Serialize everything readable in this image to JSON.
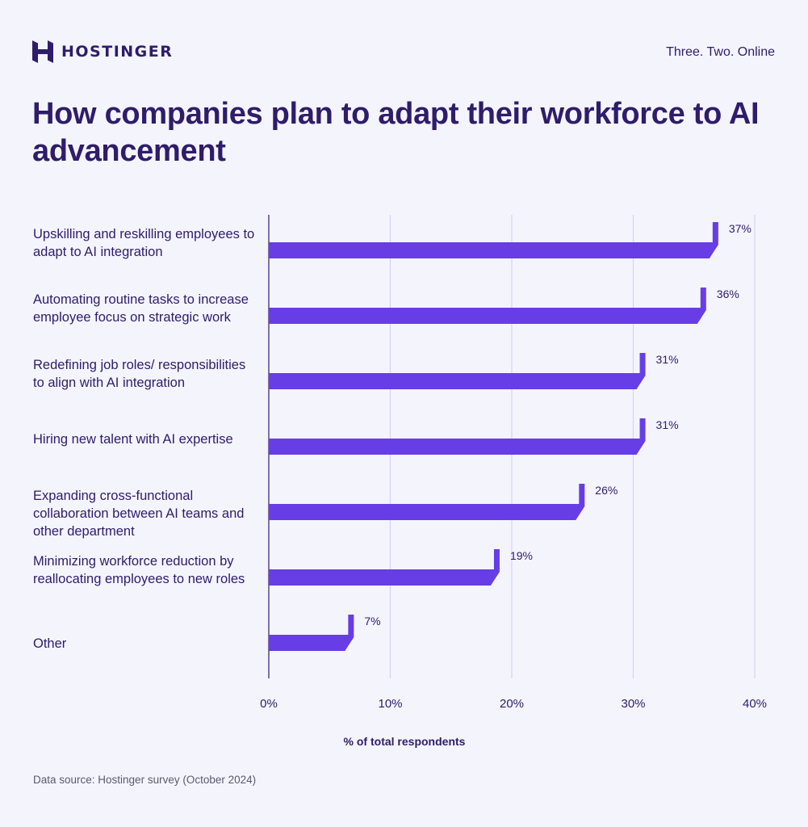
{
  "brand": {
    "name": "HOSTINGER",
    "tagline": "Three. Two. Online"
  },
  "colors": {
    "bar": "#673de6",
    "text": "#2f1c6a",
    "grid": "#d6d1f6",
    "background": "#f4f4fd"
  },
  "chart_data": {
    "type": "bar",
    "orientation": "horizontal",
    "title": "How companies plan to adapt their workforce to AI advancement",
    "categories": [
      "Upskilling and reskilling employees to adapt to AI integration",
      "Automating routine tasks to increase employee focus on strategic work",
      "Redefining job roles/ responsibilities to align with AI integration",
      "Hiring new talent with AI expertise",
      "Expanding cross-functional collaboration between AI teams and other department",
      "Minimizing workforce reduction by reallocating employees to new roles",
      "Other"
    ],
    "values": [
      37,
      36,
      31,
      31,
      26,
      19,
      7
    ],
    "data_labels": [
      "37%",
      "36%",
      "31%",
      "31%",
      "26%",
      "19%",
      "7%"
    ],
    "xlabel": "% of total respondents",
    "xlim": [
      0,
      40
    ],
    "xticks": [
      0,
      10,
      20,
      30,
      40
    ],
    "xtick_labels": [
      "0%",
      "10%",
      "20%",
      "30%",
      "40%"
    ],
    "grid": true
  },
  "source": "Data source: Hostinger survey (October 2024)"
}
